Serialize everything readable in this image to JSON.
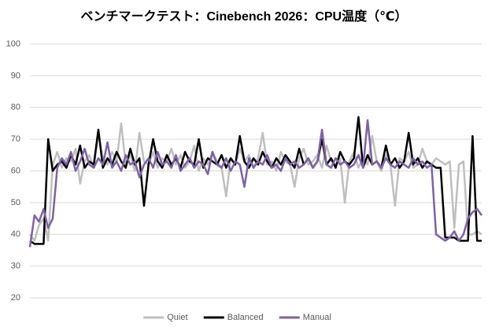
{
  "chart_data": {
    "type": "line",
    "title": "ベンチマークテスト：Cinebench 2026：CPU温度（℃）",
    "ylim": [
      20,
      100
    ],
    "yticks": [
      20,
      30,
      40,
      50,
      60,
      70,
      80,
      90,
      100
    ],
    "grid": true,
    "legend": "bottom",
    "series": [
      {
        "name": "Quiet",
        "color": "#bfbfbf",
        "values": [
          40,
          38,
          43,
          45,
          38,
          62,
          66,
          61,
          64,
          63,
          67,
          56,
          63,
          65,
          61,
          72,
          64,
          62,
          66,
          63,
          75,
          62,
          65,
          60,
          72,
          63,
          62,
          66,
          61,
          64,
          63,
          67,
          62,
          65,
          61,
          63,
          68,
          60,
          64,
          62,
          66,
          63,
          61,
          52,
          64,
          62,
          67,
          63,
          65,
          61,
          64,
          72,
          62,
          63,
          60,
          66,
          63,
          62,
          55,
          64,
          67,
          62,
          63,
          65,
          61,
          68,
          63,
          62,
          64,
          50,
          63,
          66,
          61,
          64,
          62,
          71,
          63,
          60,
          65,
          62,
          49,
          64,
          63,
          66,
          61,
          62,
          67,
          63,
          62,
          64,
          63,
          62,
          63,
          42,
          62,
          63,
          40,
          40,
          41,
          40
        ]
      },
      {
        "name": "Balanced",
        "color": "#000000",
        "values": [
          38,
          37,
          37,
          37,
          70,
          60,
          62,
          63,
          61,
          65,
          62,
          68,
          61,
          63,
          62,
          73,
          61,
          64,
          62,
          66,
          63,
          61,
          67,
          62,
          64,
          49,
          62,
          70,
          63,
          61,
          65,
          62,
          64,
          61,
          66,
          63,
          62,
          70,
          61,
          64,
          63,
          62,
          65,
          61,
          64,
          62,
          71,
          63,
          61,
          64,
          62,
          66,
          63,
          61,
          64,
          62,
          65,
          63,
          61,
          67,
          62,
          64,
          61,
          63,
          70,
          62,
          64,
          61,
          66,
          63,
          62,
          64,
          77,
          61,
          65,
          62,
          63,
          61,
          68,
          62,
          64,
          61,
          63,
          72,
          62,
          64,
          61,
          63,
          62,
          61,
          61,
          39,
          39,
          39,
          38,
          38,
          38,
          71,
          38,
          38
        ]
      },
      {
        "name": "Manual",
        "color": "#7e62a6",
        "values": [
          36,
          46,
          44,
          48,
          42,
          45,
          61,
          64,
          62,
          66,
          60,
          63,
          67,
          62,
          61,
          64,
          62,
          69,
          61,
          63,
          60,
          65,
          62,
          63,
          58,
          62,
          64,
          61,
          66,
          62,
          63,
          61,
          65,
          60,
          62,
          64,
          61,
          63,
          62,
          59,
          66,
          62,
          61,
          64,
          60,
          63,
          62,
          55,
          64,
          61,
          63,
          62,
          65,
          61,
          62,
          60,
          64,
          62,
          63,
          61,
          62,
          64,
          61,
          63,
          73,
          62,
          61,
          64,
          62,
          63,
          61,
          62,
          65,
          61,
          76,
          62,
          63,
          61,
          64,
          62,
          61,
          63,
          62,
          61,
          64,
          62,
          63,
          61,
          62,
          40,
          39,
          38,
          39,
          41,
          38,
          40,
          45,
          47,
          48,
          46
        ]
      }
    ]
  }
}
